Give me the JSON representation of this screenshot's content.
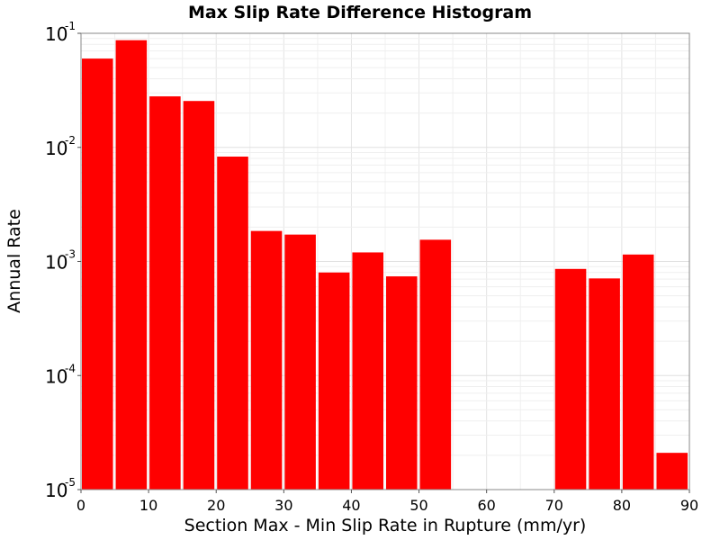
{
  "chart_data": {
    "type": "bar",
    "title": "Max Slip Rate Difference Histogram",
    "xlabel": "Section Max - Min Slip Rate in Rupture (mm/yr)",
    "ylabel": "Annual Rate",
    "xlim": [
      0,
      90
    ],
    "ylim": [
      1e-05,
      0.1
    ],
    "y_scale": "log",
    "grid": true,
    "legend": "none",
    "bar_color": "#ff0000",
    "bin_width": 5,
    "x_ticks": [
      "0",
      "10",
      "20",
      "30",
      "40",
      "50",
      "60",
      "70",
      "80",
      "90"
    ],
    "y_ticks": [
      {
        "base": "10",
        "exp": "-1",
        "value": 0.1
      },
      {
        "base": "10",
        "exp": "-2",
        "value": 0.01
      },
      {
        "base": "10",
        "exp": "-3",
        "value": 0.001
      },
      {
        "base": "10",
        "exp": "-4",
        "value": 0.0001
      },
      {
        "base": "10",
        "exp": "-5",
        "value": 1e-05
      }
    ],
    "bars": [
      {
        "x": 0,
        "value": 0.06
      },
      {
        "x": 5,
        "value": 0.087
      },
      {
        "x": 10,
        "value": 0.028
      },
      {
        "x": 15,
        "value": 0.0255
      },
      {
        "x": 20,
        "value": 0.0083
      },
      {
        "x": 25,
        "value": 0.00185
      },
      {
        "x": 30,
        "value": 0.00172
      },
      {
        "x": 35,
        "value": 0.0008
      },
      {
        "x": 40,
        "value": 0.0012
      },
      {
        "x": 45,
        "value": 0.00074
      },
      {
        "x": 50,
        "value": 0.00155
      },
      {
        "x": 70,
        "value": 0.00086
      },
      {
        "x": 75,
        "value": 0.00071
      },
      {
        "x": 80,
        "value": 0.00115
      },
      {
        "x": 85,
        "value": 2.1e-05
      }
    ]
  }
}
